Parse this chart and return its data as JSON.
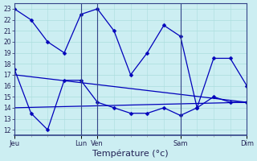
{
  "background_color": "#cceef2",
  "grid_color": "#aadddd",
  "line_color": "#0000bb",
  "xlabel": "Température (°c)",
  "xlabel_fontsize": 8,
  "yticks": [
    12,
    13,
    14,
    15,
    16,
    17,
    18,
    19,
    20,
    21,
    22,
    23
  ],
  "ylim": [
    11.5,
    23.5
  ],
  "xlim": [
    0,
    7
  ],
  "vline_positions": [
    2,
    2.5,
    5
  ],
  "major_xtick_positions": [
    0,
    2,
    2.5,
    5,
    7
  ],
  "major_xtick_labels": [
    "Jeu",
    "Lun",
    "Ven",
    "Sam",
    "Dim"
  ],
  "lines": [
    {
      "x": [
        0,
        0.5,
        1.0,
        1.5,
        2.0,
        2.5,
        3.0,
        3.5,
        4.0,
        4.5,
        5.0,
        5.5,
        6.0,
        6.5,
        7.0
      ],
      "y": [
        23,
        22,
        20,
        19,
        22.5,
        23,
        21,
        17,
        19,
        21.5,
        20.5,
        14,
        18.5,
        18.5,
        16
      ]
    },
    {
      "x": [
        0,
        0.5,
        1.0,
        1.5,
        2.0,
        2.5,
        3.0,
        3.5,
        4.0,
        4.5,
        5.0,
        5.5,
        6.0,
        6.5,
        7.0
      ],
      "y": [
        17.5,
        13.5,
        12,
        16.5,
        16.5,
        14.5,
        14,
        13.5,
        13.5,
        14,
        13.3,
        14,
        15,
        14.5,
        14.5
      ]
    },
    {
      "x": [
        0,
        7
      ],
      "y": [
        17,
        14.5
      ]
    },
    {
      "x": [
        0,
        7
      ],
      "y": [
        14,
        14.5
      ]
    }
  ]
}
